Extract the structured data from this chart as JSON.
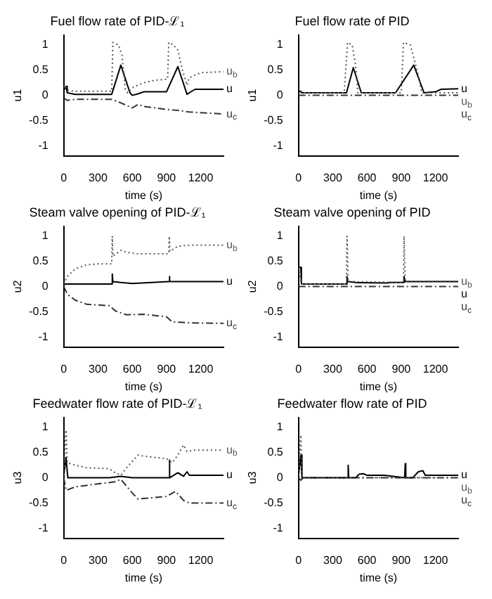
{
  "chart_data": [
    {
      "type": "line",
      "title": "Fuel flow rate of PID-ℒ₁",
      "xlabel": "time (s)",
      "ylabel": "u1",
      "xlim": [
        0,
        1400
      ],
      "ylim": [
        -1.2,
        1.2
      ],
      "xticks": [
        0,
        300,
        600,
        900,
        1200
      ],
      "yticks": [
        -1,
        -0.5,
        0,
        0.5,
        1
      ],
      "series": [
        {
          "name": "u$_{b}$",
          "color": "#555555",
          "line_style": "dotted",
          "x": [
            0,
            10,
            30,
            100,
            420,
            430,
            480,
            510,
            540,
            560,
            600,
            700,
            800,
            910,
            920,
            960,
            1000,
            1040,
            1080,
            1100,
            1200,
            1400
          ],
          "values": [
            0.15,
            0.2,
            0.1,
            0.08,
            0.08,
            1.05,
            1.0,
            0.8,
            0.1,
            0.05,
            0.15,
            0.25,
            0.3,
            0.32,
            1.05,
            1.0,
            0.9,
            0.5,
            0.2,
            0.35,
            0.45,
            0.47
          ]
        },
        {
          "name": "u",
          "color": "#000000",
          "line_style": "solid",
          "x": [
            0,
            20,
            30,
            100,
            420,
            500,
            580,
            600,
            650,
            700,
            900,
            1000,
            1080,
            1100,
            1150,
            1400
          ],
          "values": [
            0.1,
            0.18,
            0.05,
            0.02,
            0.02,
            0.6,
            0.05,
            0.0,
            0.03,
            0.07,
            0.07,
            0.57,
            0.02,
            0.05,
            0.12,
            0.12
          ]
        },
        {
          "name": "u$_{c}$",
          "color": "#333333",
          "line_style": "dashed",
          "x": [
            0,
            30,
            100,
            420,
            500,
            600,
            650,
            700,
            900,
            1000,
            1100,
            1400
          ],
          "values": [
            -0.05,
            -0.1,
            -0.08,
            -0.08,
            -0.15,
            -0.25,
            -0.18,
            -0.22,
            -0.28,
            -0.3,
            -0.33,
            -0.37
          ]
        }
      ]
    },
    {
      "type": "line",
      "title": "Fuel flow rate of PID",
      "xlabel": "time (s)",
      "ylabel": "u1",
      "xlim": [
        0,
        1400
      ],
      "ylim": [
        -1.2,
        1.2
      ],
      "xticks": [
        0,
        300,
        600,
        900,
        1200
      ],
      "yticks": [
        -1,
        -0.5,
        0,
        0.5,
        1
      ],
      "series": [
        {
          "name": "u$_{b}$",
          "color": "#555555",
          "line_style": "dotted",
          "x": [
            0,
            20,
            30,
            400,
            430,
            470,
            500,
            520,
            900,
            920,
            980,
            1050,
            1080,
            1400
          ],
          "values": [
            0.15,
            0.12,
            0.05,
            0.05,
            1.05,
            1.0,
            0.6,
            0.05,
            0.05,
            1.05,
            1.0,
            0.4,
            0.05,
            0.05
          ]
        },
        {
          "name": "u",
          "color": "#000000",
          "line_style": "solid",
          "x": [
            0,
            30,
            420,
            480,
            550,
            850,
            1010,
            1100,
            1200,
            1250,
            1400
          ],
          "values": [
            0.1,
            0.05,
            0.05,
            0.55,
            0.05,
            0.05,
            0.6,
            0.05,
            0.07,
            0.12,
            0.13
          ]
        },
        {
          "name": "u$_{c}$",
          "color": "#333333",
          "line_style": "dashed",
          "x": [
            0,
            1400
          ],
          "values": [
            0,
            0
          ]
        }
      ]
    },
    {
      "type": "line",
      "title": "Steam valve opening of PID-ℒ₁",
      "xlabel": "time (s)",
      "ylabel": "u2",
      "xlim": [
        0,
        1400
      ],
      "ylim": [
        -1.2,
        1.2
      ],
      "xticks": [
        0,
        300,
        600,
        900,
        1200
      ],
      "yticks": [
        -1,
        -0.5,
        0,
        0.5,
        1
      ],
      "series": [
        {
          "name": "u$_{b}$",
          "color": "#555555",
          "line_style": "dotted",
          "x": [
            0,
            30,
            100,
            200,
            300,
            420,
            425,
            430,
            500,
            550,
            650,
            920,
            925,
            930,
            1000,
            1100,
            1400
          ],
          "values": [
            0.05,
            0.2,
            0.35,
            0.43,
            0.45,
            0.45,
            1.0,
            0.6,
            0.72,
            0.68,
            0.65,
            0.65,
            1.0,
            0.7,
            0.8,
            0.82,
            0.82
          ]
        },
        {
          "name": "u",
          "color": "#000000",
          "line_style": "solid",
          "x": [
            0,
            420,
            425,
            430,
            500,
            600,
            920,
            925,
            930,
            1400
          ],
          "values": [
            0.05,
            0.05,
            0.25,
            0.1,
            0.08,
            0.06,
            0.1,
            0.2,
            0.1,
            0.1
          ]
        },
        {
          "name": "u$_{c}$",
          "color": "#333333",
          "line_style": "dashed",
          "x": [
            0,
            30,
            100,
            200,
            400,
            450,
            550,
            700,
            900,
            950,
            1100,
            1400
          ],
          "values": [
            0,
            -0.15,
            -0.27,
            -0.35,
            -0.38,
            -0.48,
            -0.56,
            -0.55,
            -0.6,
            -0.7,
            -0.72,
            -0.73
          ]
        }
      ]
    },
    {
      "type": "line",
      "title": "Steam valve opening of PID",
      "xlabel": "time (s)",
      "ylabel": "u2",
      "xlim": [
        0,
        1400
      ],
      "ylim": [
        -1.2,
        1.2
      ],
      "xticks": [
        0,
        300,
        600,
        900,
        1200
      ],
      "yticks": [
        -1,
        -0.5,
        0,
        0.5,
        1
      ],
      "series": [
        {
          "name": "u$_{b}$",
          "color": "#555555",
          "line_style": "dotted",
          "x": [
            0,
            25,
            420,
            425,
            435,
            920,
            925,
            935,
            1400
          ],
          "values": [
            0.38,
            0.05,
            0.05,
            1.0,
            0.1,
            0.08,
            1.0,
            0.1,
            0.1
          ]
        },
        {
          "name": "u",
          "color": "#000000",
          "line_style": "solid",
          "x": [
            0,
            20,
            25,
            420,
            425,
            430,
            500,
            780,
            800,
            920,
            925,
            935,
            1400
          ],
          "values": [
            0.38,
            0.38,
            0.05,
            0.05,
            0.2,
            0.1,
            0.08,
            0.07,
            0.08,
            0.08,
            0.2,
            0.1,
            0.1
          ]
        },
        {
          "name": "u$_{c}$",
          "color": "#333333",
          "line_style": "dashed",
          "x": [
            0,
            1400
          ],
          "values": [
            0,
            0
          ]
        }
      ]
    },
    {
      "type": "line",
      "title": "Feedwater flow rate of PID-ℒ₁",
      "xlabel": "time (s)",
      "ylabel": "u3",
      "xlim": [
        0,
        1400
      ],
      "ylim": [
        -1.2,
        1.2
      ],
      "xticks": [
        0,
        300,
        600,
        900,
        1200
      ],
      "yticks": [
        -1,
        -0.5,
        0,
        0.5,
        1
      ],
      "series": [
        {
          "name": "u$_{b}$",
          "color": "#555555",
          "line_style": "dotted",
          "x": [
            0,
            20,
            30,
            100,
            200,
            400,
            450,
            500,
            550,
            650,
            700,
            900,
            950,
            1000,
            1050,
            1080,
            1150,
            1400
          ],
          "values": [
            0.05,
            0.95,
            0.3,
            0.25,
            0.2,
            0.18,
            0.1,
            0.05,
            0.2,
            0.45,
            0.43,
            0.38,
            0.3,
            0.45,
            0.65,
            0.52,
            0.55,
            0.55
          ]
        },
        {
          "name": "u",
          "color": "#000000",
          "line_style": "solid",
          "x": [
            0,
            20,
            35,
            400,
            500,
            600,
            920,
            925,
            930,
            1000,
            1050,
            1080,
            1100,
            1400
          ],
          "values": [
            0.05,
            0.4,
            0,
            0,
            0.03,
            0,
            0,
            0.35,
            0,
            0.1,
            0.03,
            0.12,
            0.05,
            0.05
          ]
        },
        {
          "name": "u$_{c}$",
          "color": "#333333",
          "line_style": "dashed",
          "x": [
            0,
            20,
            100,
            300,
            450,
            500,
            600,
            650,
            900,
            980,
            1050,
            1100,
            1400
          ],
          "values": [
            0,
            -0.25,
            -0.18,
            -0.12,
            -0.08,
            -0.03,
            -0.3,
            -0.42,
            -0.37,
            -0.27,
            -0.45,
            -0.5,
            -0.5
          ]
        }
      ]
    },
    {
      "type": "line",
      "title": "Feedwater flow rate of PID",
      "xlabel": "time (s)",
      "ylabel": "u3",
      "xlim": [
        0,
        1400
      ],
      "ylim": [
        -1.2,
        1.2
      ],
      "xticks": [
        0,
        300,
        600,
        900,
        1200
      ],
      "yticks": [
        -1,
        -0.5,
        0,
        0.5,
        1
      ],
      "series": [
        {
          "name": "u$_{b}$",
          "color": "#555555",
          "line_style": "dotted",
          "x": [
            0,
            20,
            30,
            1400
          ],
          "values": [
            0.05,
            0.85,
            0,
            0
          ]
        },
        {
          "name": "u",
          "color": "#000000",
          "line_style": "solid",
          "x": [
            0,
            20,
            30,
            430,
            435,
            440,
            500,
            530,
            570,
            600,
            750,
            930,
            935,
            940,
            1000,
            1050,
            1090,
            1110,
            1400
          ],
          "values": [
            0.05,
            0.45,
            0,
            0,
            0.25,
            0,
            0,
            0.07,
            0.08,
            0.05,
            0.05,
            0,
            0.28,
            0,
            0,
            0.12,
            0.14,
            0.05,
            0.05
          ]
        },
        {
          "name": "u$_{c}$",
          "color": "#333333",
          "line_style": "dashed",
          "x": [
            0,
            20,
            40,
            1400
          ],
          "values": [
            0,
            -0.05,
            0,
            0
          ]
        }
      ]
    }
  ]
}
